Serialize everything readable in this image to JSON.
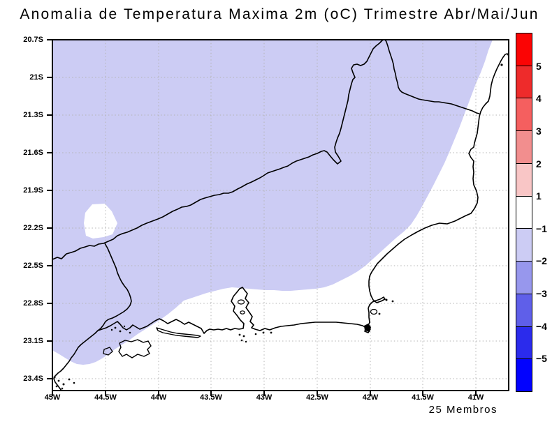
{
  "title": "Anomalia de Temperatura Maxima 2m (oC) Trimestre Abr/Mai/Jun",
  "footer_note": "25 Membros",
  "axes": {
    "lat_ticks": [
      "20.7S",
      "21S",
      "21.3S",
      "21.6S",
      "21.9S",
      "22.2S",
      "22.5S",
      "22.8S",
      "23.1S",
      "23.4S"
    ],
    "lon_ticks": [
      "45W",
      "44.5W",
      "44W",
      "43.5W",
      "43W",
      "42.5W",
      "42W",
      "41.5W",
      "41W"
    ]
  },
  "colorbar": {
    "tick_labels": [
      "5",
      "4",
      "3",
      "2",
      "1",
      "−1",
      "−2",
      "−3",
      "−4",
      "−5"
    ],
    "segment_colors": [
      "#fb0404",
      "#ee2b2b",
      "#f55f5f",
      "#f28e8e",
      "#f9c6c6",
      "#ffffff",
      "#ccccf4",
      "#9797ed",
      "#5f5fe9",
      "#2b2bec",
      "#0202fe"
    ]
  },
  "map": {
    "shaded_color": "#ccccf4",
    "line_color": "#000000",
    "grid_color": "#b3b3b3",
    "shaded_value_range": "-2 to -1 (oC)",
    "unshaded_value_range": "-1 to 1 (oC)"
  },
  "chart_data": {
    "type": "heatmap",
    "title": "Anomalia de Temperatura Maxima 2m (oC) Trimestre Abr/Mai/Jun",
    "region": {
      "lon_west": "45W",
      "lon_east": "~40.7W",
      "lat_north": "20.7S",
      "lat_south": "~23.5S"
    },
    "colorbar_levels": [
      5,
      4,
      3,
      2,
      1,
      -1,
      -2,
      -3,
      -4,
      -5
    ],
    "ensemble_members": 25,
    "anomaly_field": [
      {
        "value_range_oC": "-2 to -1",
        "area": "most of the map: inland/northwest region"
      },
      {
        "value_range_oC": "-1 to 1",
        "area": "southeast coastal strip, east offshore band and a small inland pocket near 44.6W/22.2S"
      }
    ],
    "legend_position": "right vertical colorbar",
    "grid": true
  }
}
